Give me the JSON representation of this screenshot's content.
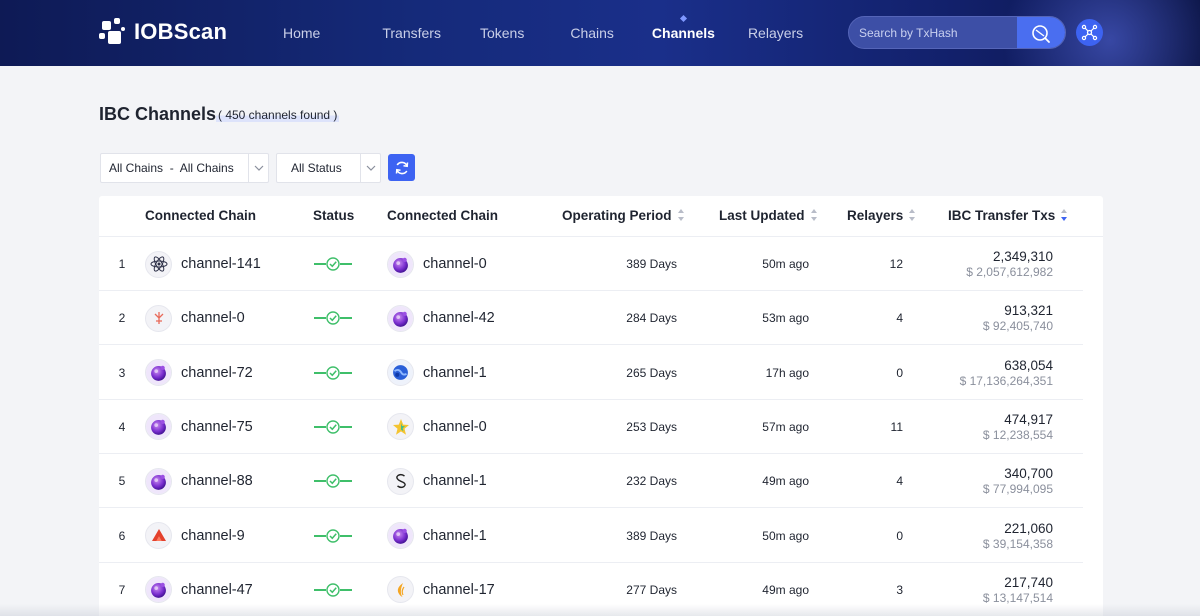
{
  "brand": {
    "name": "IOBScan"
  },
  "nav": {
    "items": [
      {
        "label": "Home",
        "active": false
      },
      {
        "label": "Transfers",
        "active": false
      },
      {
        "label": "Tokens",
        "active": false
      },
      {
        "label": "Chains",
        "active": false
      },
      {
        "label": "Channels",
        "active": true
      },
      {
        "label": "Relayers",
        "active": false
      }
    ]
  },
  "search": {
    "placeholder": "Search by TxHash"
  },
  "page": {
    "title": "IBC Channels",
    "count_text": "( 450 channels found )"
  },
  "filters": {
    "chains_label": "All Chains  -  All Chains",
    "status_label": "All Status"
  },
  "table": {
    "headers": {
      "chain_a": "Connected Chain",
      "status": "Status",
      "chain_b": "Connected Chain",
      "period": "Operating Period",
      "updated": "Last Updated",
      "relayers": "Relayers",
      "txs": "IBC Transfer Txs"
    },
    "rows": [
      {
        "index": "1",
        "chain_a": "channel-141",
        "icon_a": "cosmos-atom-icon",
        "chain_b": "channel-0",
        "icon_b": "osmosis-icon",
        "period": "389 Days",
        "updated": "50m ago",
        "relayers": "12",
        "txs": "2,349,310",
        "value": "$ 2,057,612,982"
      },
      {
        "index": "2",
        "chain_a": "channel-0",
        "icon_a": "crypto-org-icon",
        "chain_b": "channel-42",
        "icon_b": "osmosis-icon",
        "period": "284 Days",
        "updated": "53m ago",
        "relayers": "4",
        "txs": "913,321",
        "value": "$ 92,405,740"
      },
      {
        "index": "3",
        "chain_a": "channel-72",
        "icon_a": "osmosis-icon",
        "chain_b": "channel-1",
        "icon_b": "terra-icon",
        "period": "265 Days",
        "updated": "17h ago",
        "relayers": "0",
        "txs": "638,054",
        "value": "$ 17,136,264,351"
      },
      {
        "index": "4",
        "chain_a": "channel-75",
        "icon_a": "osmosis-icon",
        "chain_b": "channel-0",
        "icon_b": "star-icon",
        "period": "253 Days",
        "updated": "57m ago",
        "relayers": "11",
        "txs": "474,917",
        "value": "$ 12,238,554"
      },
      {
        "index": "5",
        "chain_a": "channel-88",
        "icon_a": "osmosis-icon",
        "chain_b": "channel-1",
        "icon_b": "secret-icon",
        "period": "232 Days",
        "updated": "49m ago",
        "relayers": "4",
        "txs": "340,700",
        "value": "$ 77,994,095"
      },
      {
        "index": "6",
        "chain_a": "channel-9",
        "icon_a": "akash-icon",
        "chain_b": "channel-1",
        "icon_b": "osmosis-icon",
        "period": "389 Days",
        "updated": "50m ago",
        "relayers": "0",
        "txs": "221,060",
        "value": "$ 39,154,358"
      },
      {
        "index": "7",
        "chain_a": "channel-47",
        "icon_a": "osmosis-icon",
        "chain_b": "channel-17",
        "icon_b": "juno-icon",
        "period": "277 Days",
        "updated": "49m ago",
        "relayers": "3",
        "txs": "217,740",
        "value": "$ 13,147,514"
      }
    ]
  },
  "colors": {
    "accent": "#3d63f2",
    "status_ok": "#3fbf6a",
    "header_bg": "#152a7a"
  }
}
